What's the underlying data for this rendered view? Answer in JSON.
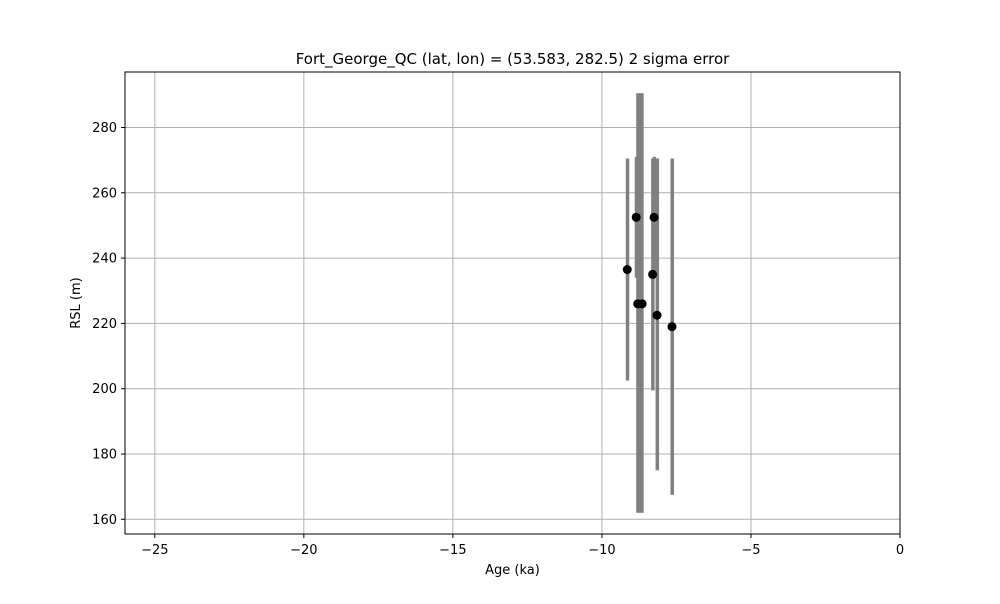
{
  "chart_data": {
    "type": "scatter",
    "title": "Fort_George_QC (lat, lon) = (53.583, 282.5)  2 sigma error",
    "xlabel": "Age (ka)",
    "ylabel": "RSL (m)",
    "xlim": [
      -26,
      0
    ],
    "ylim": [
      155.5,
      297
    ],
    "xticks": [
      -25,
      -20,
      -15,
      -10,
      -5,
      0
    ],
    "xtick_labels": [
      "−25",
      "−20",
      "−15",
      "−10",
      "−5",
      "0"
    ],
    "yticks": [
      160,
      180,
      200,
      220,
      240,
      260,
      280
    ],
    "ytick_labels": [
      "160",
      "180",
      "200",
      "220",
      "240",
      "260",
      "280"
    ],
    "grid": true,
    "colors": {
      "point": "#000000",
      "error_bar": "#808080",
      "grid": "#b0b0b0"
    },
    "points": [
      {
        "x": -9.15,
        "y": 236.5,
        "ylow": 202.5,
        "yhigh": 270.5,
        "xlow": -9.2,
        "xhigh": -9.1
      },
      {
        "x": -8.85,
        "y": 252.5,
        "ylow": 234.0,
        "yhigh": 271.0,
        "xlow": -8.9,
        "xhigh": -8.8
      },
      {
        "x": -8.8,
        "y": 226.0,
        "ylow": 162.0,
        "yhigh": 290.5,
        "xlow": -8.85,
        "xhigh": -8.7
      },
      {
        "x": -8.65,
        "y": 226.0,
        "ylow": 162.0,
        "yhigh": 290.5,
        "xlow": -8.75,
        "xhigh": -8.6
      },
      {
        "x": -8.3,
        "y": 235.0,
        "ylow": 199.5,
        "yhigh": 270.5,
        "xlow": -8.35,
        "xhigh": -8.25
      },
      {
        "x": -8.25,
        "y": 252.5,
        "ylow": 234.0,
        "yhigh": 271.0,
        "xlow": -8.3,
        "xhigh": -8.2
      },
      {
        "x": -8.15,
        "y": 222.5,
        "ylow": 175.0,
        "yhigh": 270.5,
        "xlow": -8.2,
        "xhigh": -8.1
      },
      {
        "x": -7.65,
        "y": 219.0,
        "ylow": 167.5,
        "yhigh": 270.5,
        "xlow": -7.7,
        "xhigh": -7.6
      }
    ]
  }
}
